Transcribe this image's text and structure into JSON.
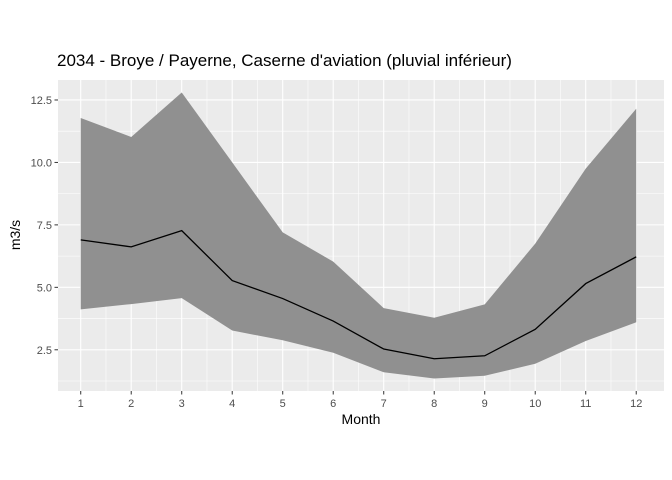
{
  "chart_data": {
    "type": "line",
    "title": "2034 - Broye / Payerne, Caserne d'aviation (pluvial inférieur)",
    "xlabel": "Month",
    "ylabel": "m3/s",
    "x": [
      1,
      2,
      3,
      4,
      5,
      6,
      7,
      8,
      9,
      10,
      11,
      12
    ],
    "x_tick_labels": [
      "1",
      "2",
      "3",
      "4",
      "5",
      "6",
      "7",
      "8",
      "9",
      "10",
      "11",
      "12"
    ],
    "y_ticks": [
      2.5,
      5.0,
      7.5,
      10.0,
      12.5
    ],
    "y_tick_labels": [
      "2.5",
      "5.0",
      "7.5",
      "10.0",
      "12.5"
    ],
    "xlim": [
      0.55,
      12.55
    ],
    "ylim": [
      0.85,
      13.3
    ],
    "grid": true,
    "legend": "none",
    "series": [
      {
        "values": [
          6.9,
          6.62,
          7.27,
          5.27,
          4.55,
          3.65,
          2.53,
          2.14,
          2.26,
          3.32,
          5.15,
          6.22
        ]
      }
    ],
    "band": {
      "lower": [
        4.12,
        4.33,
        4.57,
        3.27,
        2.88,
        2.38,
        1.6,
        1.35,
        1.46,
        1.94,
        2.85,
        3.6
      ],
      "upper": [
        11.78,
        11.02,
        12.8,
        10.0,
        7.2,
        6.03,
        4.17,
        3.78,
        4.32,
        6.75,
        9.75,
        12.15
      ]
    },
    "colors": {
      "panel": "#ebebeb",
      "grid": "#ffffff",
      "band": "#909090",
      "line": "#000000"
    }
  }
}
